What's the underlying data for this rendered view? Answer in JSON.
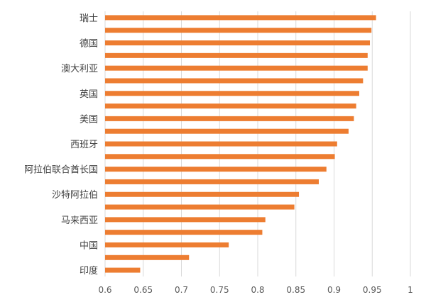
{
  "chart_data": {
    "type": "bar",
    "orientation": "horizontal",
    "categories": [
      "瑞士",
      "",
      "德国",
      "",
      "澳大利亚",
      "",
      "英国",
      "",
      "美国",
      "",
      "西班牙",
      "",
      "阿拉伯联合酋长国",
      "",
      "沙特阿拉伯",
      "",
      "马来西亚",
      "",
      "中国",
      "",
      "印度"
    ],
    "values": [
      0.955,
      0.949,
      0.947,
      0.944,
      0.944,
      0.938,
      0.933,
      0.929,
      0.926,
      0.919,
      0.904,
      0.901,
      0.89,
      0.88,
      0.854,
      0.848,
      0.81,
      0.806,
      0.762,
      0.71,
      0.646
    ],
    "xlim": [
      0.6,
      1
    ],
    "xticks": [
      "0.6",
      "0.65",
      "0.7",
      "0.75",
      "0.8",
      "0.85",
      "0.9",
      "0.95",
      "1"
    ],
    "grid": "vertical",
    "bar_color": "#ED7D31",
    "grid_color": "#D9D9D9",
    "title": "",
    "xlabel": "",
    "ylabel": ""
  }
}
